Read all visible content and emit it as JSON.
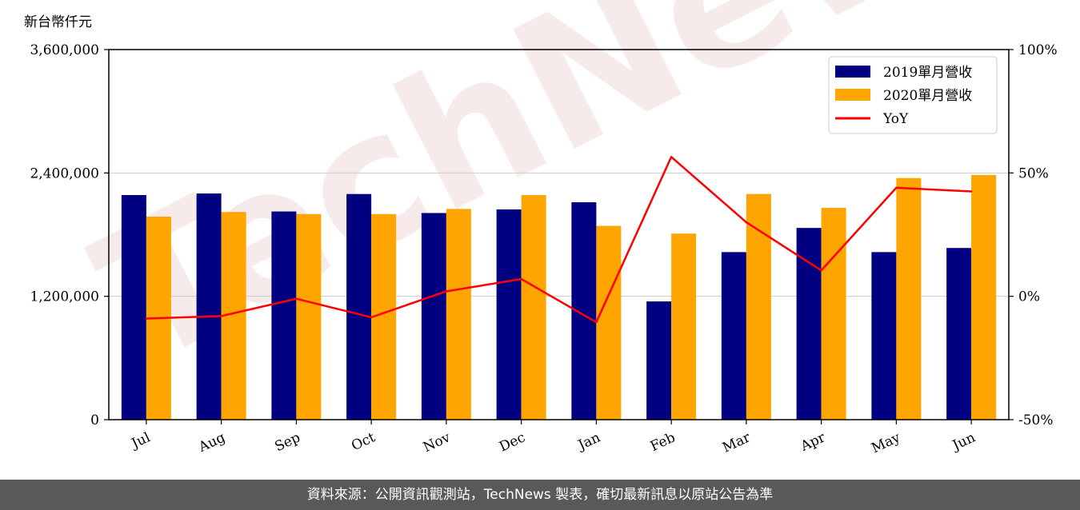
{
  "chart_data": {
    "type": "bar",
    "unit_label": "新台幣仟元",
    "categories": [
      "Jul",
      "Aug",
      "Sep",
      "Oct",
      "Nov",
      "Dec",
      "Jan",
      "Feb",
      "Mar",
      "Apr",
      "May",
      "Jun"
    ],
    "series": [
      {
        "name": "2019單月營收",
        "type": "bar",
        "axis": "left",
        "color": "#000080",
        "values": [
          2185000,
          2200000,
          2025000,
          2195000,
          2010000,
          2045000,
          2115000,
          1150000,
          1630000,
          1865000,
          1630000,
          1670000
        ]
      },
      {
        "name": "2020單月營收",
        "type": "bar",
        "axis": "left",
        "color": "#ffa500",
        "values": [
          1975000,
          2020000,
          2000000,
          2000000,
          2050000,
          2185000,
          1885000,
          1810000,
          2195000,
          2060000,
          2350000,
          2380000
        ]
      },
      {
        "name": "YoY",
        "type": "line",
        "axis": "right",
        "color": "#ff0000",
        "values": [
          -9,
          -8,
          -1,
          -8.5,
          2,
          7,
          -10.5,
          56.5,
          30,
          10.5,
          44,
          42.5
        ]
      }
    ],
    "y_left": {
      "range": [
        0,
        3600000
      ],
      "ticks": [
        "0",
        "1,200,000",
        "2,400,000",
        "3,600,000"
      ]
    },
    "y_right": {
      "range": [
        -50,
        100
      ],
      "ticks": [
        "-50%",
        "0%",
        "50%",
        "100%"
      ]
    },
    "grid": "horizontal",
    "legend": "top-right"
  },
  "watermark": "TechNews",
  "footer": "資料來源：公開資訊觀測站，TechNews 製表，確切最新訊息以原站公告為準"
}
